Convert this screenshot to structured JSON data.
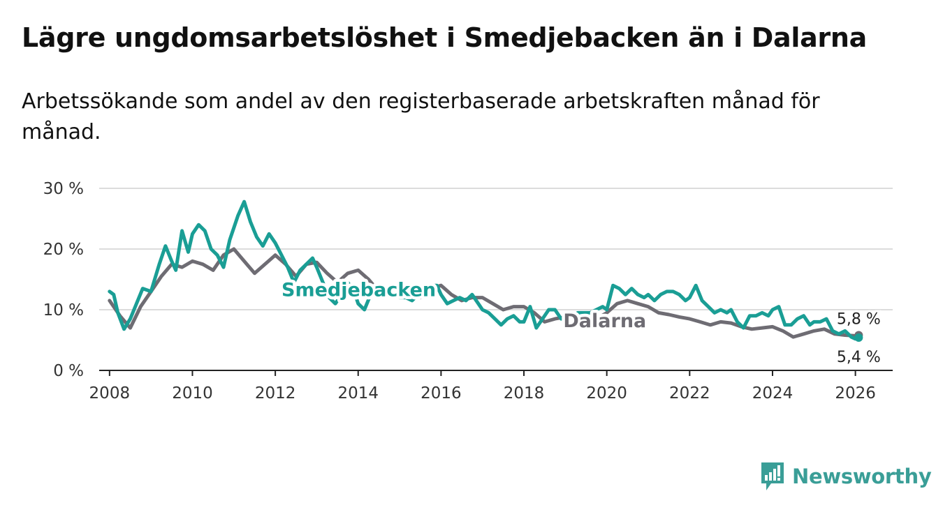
{
  "title": "Lägre ungdomsarbetslöshet i Smedjebacken än i Dalarna",
  "subtitle": "Arbetssökande som andel av den registerbaserade arbetskraften månad för månad.",
  "brand": {
    "name": "Newsworthy",
    "icon": "newsworthy-logo-icon",
    "color": "#3a9e97"
  },
  "chart_data": {
    "type": "line",
    "title": "Lägre ungdomsarbetslöshet i Smedjebacken än i Dalarna",
    "xlabel": "",
    "ylabel": "",
    "xlim": [
      2007.75,
      2026.9
    ],
    "ylim": [
      0,
      30
    ],
    "x_ticks": [
      2008,
      2010,
      2012,
      2014,
      2016,
      2018,
      2020,
      2022,
      2024,
      2026
    ],
    "x_tick_labels": [
      "2008",
      "2010",
      "2012",
      "2014",
      "2016",
      "2018",
      "2020",
      "2022",
      "2024",
      "2026"
    ],
    "y_ticks": [
      0,
      10,
      20,
      30
    ],
    "y_tick_labels": [
      "0 %",
      "10 %",
      "20 %",
      "30 %"
    ],
    "grid": true,
    "series": [
      {
        "name": "Dalarna",
        "color": "#6e6c73",
        "label": "Dalarna",
        "end_label": "5,8 %",
        "x": [
          2008.0,
          2008.25,
          2008.5,
          2008.75,
          2009.0,
          2009.25,
          2009.5,
          2009.75,
          2010.0,
          2010.25,
          2010.5,
          2010.75,
          2011.0,
          2011.25,
          2011.5,
          2011.75,
          2012.0,
          2012.25,
          2012.5,
          2012.75,
          2013.0,
          2013.25,
          2013.5,
          2013.75,
          2014.0,
          2014.25,
          2014.5,
          2014.75,
          2015.0,
          2015.25,
          2015.5,
          2015.75,
          2016.0,
          2016.25,
          2016.5,
          2016.75,
          2017.0,
          2017.25,
          2017.5,
          2017.75,
          2018.0,
          2018.25,
          2018.5,
          2018.75,
          2019.0,
          2019.25,
          2019.5,
          2019.75,
          2020.0,
          2020.25,
          2020.5,
          2020.75,
          2021.0,
          2021.25,
          2021.5,
          2021.75,
          2022.0,
          2022.25,
          2022.5,
          2022.75,
          2023.0,
          2023.25,
          2023.5,
          2023.75,
          2024.0,
          2024.25,
          2024.5,
          2024.75,
          2025.0,
          2025.25,
          2025.5,
          2025.75,
          2026.0,
          2026.08
        ],
        "values": [
          11.5,
          9.0,
          7.0,
          10.5,
          13.0,
          15.5,
          17.5,
          17.0,
          18.0,
          17.5,
          16.5,
          19.0,
          20.0,
          18.0,
          16.0,
          17.5,
          19.0,
          17.5,
          15.5,
          17.5,
          17.8,
          16.0,
          14.5,
          16.0,
          16.5,
          15.0,
          13.0,
          12.5,
          13.0,
          12.5,
          12.0,
          13.5,
          14.0,
          12.5,
          11.5,
          12.0,
          12.0,
          11.0,
          10.0,
          10.5,
          10.5,
          9.5,
          8.0,
          8.5,
          8.8,
          8.0,
          7.0,
          8.5,
          9.5,
          11.0,
          11.5,
          11.0,
          10.5,
          9.5,
          9.2,
          8.8,
          8.5,
          8.0,
          7.5,
          8.0,
          7.8,
          7.2,
          6.8,
          7.0,
          7.2,
          6.5,
          5.5,
          6.0,
          6.5,
          6.8,
          6.0,
          5.8,
          5.7,
          5.8
        ]
      },
      {
        "name": "Smedjebacken",
        "color": "#1a9e95",
        "label": "Smedjebacken",
        "end_label": "5,4 %",
        "x": [
          2008.0,
          2008.1,
          2008.2,
          2008.35,
          2008.5,
          2008.65,
          2008.8,
          2009.0,
          2009.2,
          2009.35,
          2009.5,
          2009.6,
          2009.75,
          2009.9,
          2010.0,
          2010.15,
          2010.3,
          2010.45,
          2010.6,
          2010.75,
          2010.9,
          2011.0,
          2011.1,
          2011.25,
          2011.4,
          2011.55,
          2011.7,
          2011.85,
          2012.0,
          2012.15,
          2012.3,
          2012.45,
          2012.6,
          2012.75,
          2012.9,
          2013.0,
          2013.15,
          2013.3,
          2013.45,
          2013.6,
          2013.75,
          2013.9,
          2014.0,
          2014.15,
          2014.3,
          2014.45,
          2014.6,
          2014.75,
          2014.9,
          2015.0,
          2015.15,
          2015.3,
          2015.45,
          2015.6,
          2015.75,
          2015.9,
          2016.0,
          2016.15,
          2016.3,
          2016.45,
          2016.6,
          2016.75,
          2016.9,
          2017.0,
          2017.15,
          2017.3,
          2017.45,
          2017.6,
          2017.75,
          2017.9,
          2018.0,
          2018.15,
          2018.3,
          2018.45,
          2018.6,
          2018.75,
          2018.9,
          2019.0,
          2019.15,
          2019.3,
          2019.45,
          2019.6,
          2019.75,
          2019.9,
          2020.0,
          2020.15,
          2020.3,
          2020.45,
          2020.6,
          2020.75,
          2020.9,
          2021.0,
          2021.15,
          2021.3,
          2021.45,
          2021.6,
          2021.75,
          2021.9,
          2022.0,
          2022.15,
          2022.3,
          2022.45,
          2022.6,
          2022.75,
          2022.9,
          2023.0,
          2023.15,
          2023.3,
          2023.45,
          2023.6,
          2023.75,
          2023.9,
          2024.0,
          2024.15,
          2024.3,
          2024.45,
          2024.6,
          2024.75,
          2024.9,
          2025.0,
          2025.15,
          2025.3,
          2025.45,
          2025.6,
          2025.75,
          2025.9,
          2026.0,
          2026.08
        ],
        "values": [
          13.0,
          12.5,
          9.5,
          6.8,
          8.5,
          11.0,
          13.5,
          13.0,
          17.5,
          20.5,
          18.0,
          16.5,
          23.0,
          19.5,
          22.5,
          24.0,
          23.0,
          20.0,
          19.0,
          17.0,
          21.5,
          23.5,
          25.5,
          27.8,
          24.5,
          22.0,
          20.5,
          22.5,
          21.0,
          19.0,
          17.0,
          14.5,
          16.5,
          17.5,
          18.5,
          17.0,
          14.5,
          12.0,
          11.0,
          12.5,
          14.5,
          13.0,
          11.0,
          10.0,
          12.5,
          13.5,
          12.0,
          13.0,
          12.5,
          12.0,
          12.0,
          11.5,
          12.5,
          13.0,
          14.0,
          14.0,
          12.5,
          11.0,
          11.5,
          12.0,
          11.5,
          12.5,
          11.0,
          10.0,
          9.5,
          8.5,
          7.5,
          8.5,
          9.0,
          8.0,
          8.0,
          10.5,
          7.0,
          8.5,
          10.0,
          10.0,
          8.5,
          8.5,
          9.0,
          9.5,
          9.5,
          9.5,
          10.0,
          10.5,
          10.0,
          14.0,
          13.5,
          12.5,
          13.5,
          12.5,
          12.0,
          12.5,
          11.5,
          12.5,
          13.0,
          13.0,
          12.5,
          11.5,
          12.0,
          14.0,
          11.5,
          10.5,
          9.5,
          10.0,
          9.5,
          10.0,
          8.0,
          7.0,
          9.0,
          9.0,
          9.5,
          9.0,
          10.0,
          10.5,
          7.5,
          7.5,
          8.5,
          9.0,
          7.5,
          8.0,
          8.0,
          8.5,
          6.5,
          6.0,
          6.5,
          5.5,
          5.2,
          5.4
        ]
      }
    ]
  }
}
